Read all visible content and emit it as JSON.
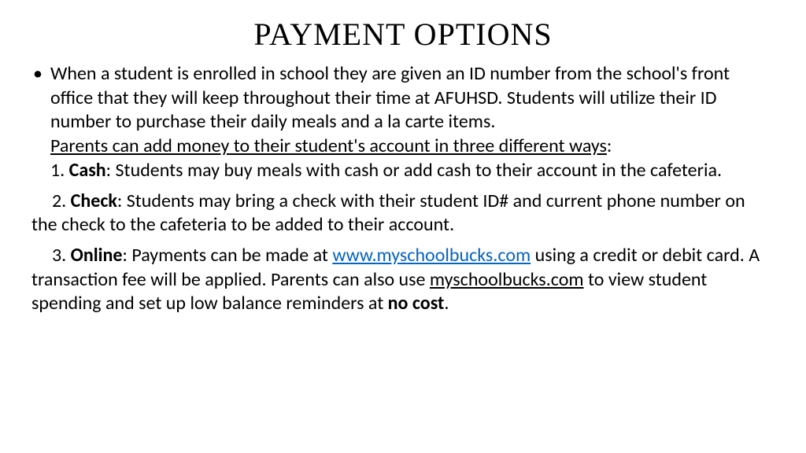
{
  "title": "PAYMENT OPTIONS",
  "intro": "When a student is enrolled in school they are given an ID number from the school's front office that they will keep throughout their time at AFUHSD. Students will utilize their ID number to purchase their daily meals and a la carte items.",
  "ways_line": "Parents can add money to their student's account in three different ways",
  "ways_colon": ":",
  "item1_num": "1. ",
  "item1_label": "Cash",
  "item1_text": ": Students may buy meals with cash or add cash to their account in the cafeteria.",
  "item2_num": "2. ",
  "item2_label": "Check",
  "item2_text": ": Students may bring a check with their student ID# and current phone number on the check to the cafeteria to be added to their account.",
  "item3_num": "3. ",
  "item3_label": "Online",
  "item3_pre": ": Payments can be made at ",
  "item3_link": "www.myschoolbucks.com",
  "item3_mid": " using a credit or debit card. A transaction fee will be applied. Parents can also use ",
  "item3_under": "myschoolbucks.com",
  "item3_post1": " to view student spending and set up low balance reminders at ",
  "item3_bold_end": "no cost",
  "item3_period": ".",
  "colors": {
    "text": "#000000",
    "link": "#0563c1",
    "background": "#ffffff"
  },
  "fonts": {
    "title_family": "Times New Roman",
    "body_family": "Calibri",
    "title_size_pt": 32,
    "body_size_pt": 18
  }
}
